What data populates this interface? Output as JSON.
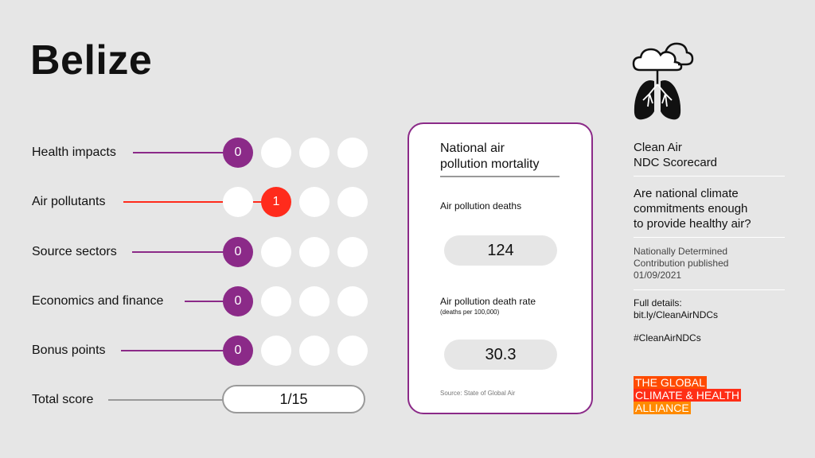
{
  "country": "Belize",
  "rows": [
    {
      "label": "Health impacts",
      "score": "0"
    },
    {
      "label": "Air pollutants",
      "score": "1"
    },
    {
      "label": "Source sectors",
      "score": "0"
    },
    {
      "label": "Economics and finance",
      "score": "0"
    },
    {
      "label": "Bonus points",
      "score": "0"
    }
  ],
  "total": {
    "label": "Total score",
    "value": "1/15"
  },
  "card": {
    "title_line1": "National air",
    "title_line2": "pollution mortality",
    "deaths_label": "Air pollution deaths",
    "deaths_value": "124",
    "rate_label": "Air pollution death rate",
    "rate_sublabel": "(deaths per 100,000)",
    "rate_value": "30.3",
    "source": "Source: State of Global Air"
  },
  "right": {
    "title_line1": "Clean Air",
    "title_line2": "NDC Scorecard",
    "question_line1": "Are national climate",
    "question_line2": "commitments enough",
    "question_line3": "to provide healthy air?",
    "ndc_line1": "Nationally Determined",
    "ndc_line2": "Contribution published",
    "ndc_date": "01/09/2021",
    "details_label": "Full details:",
    "details_link": "bit.ly/CleanAirNDCs",
    "hashtag": "#CleanAirNDCs",
    "alliance_line1": "THE GLOBAL",
    "alliance_line2": "CLIMATE & HEALTH",
    "alliance_line3": "ALLIANCE"
  },
  "colors": {
    "purple": "#8b2a88",
    "red": "#ff2b1c",
    "orange1": "#ff4b00",
    "orange2": "#ff2e16",
    "orange3": "#ff8a00"
  },
  "icons": {
    "logo": "clouds-lungs-icon"
  }
}
